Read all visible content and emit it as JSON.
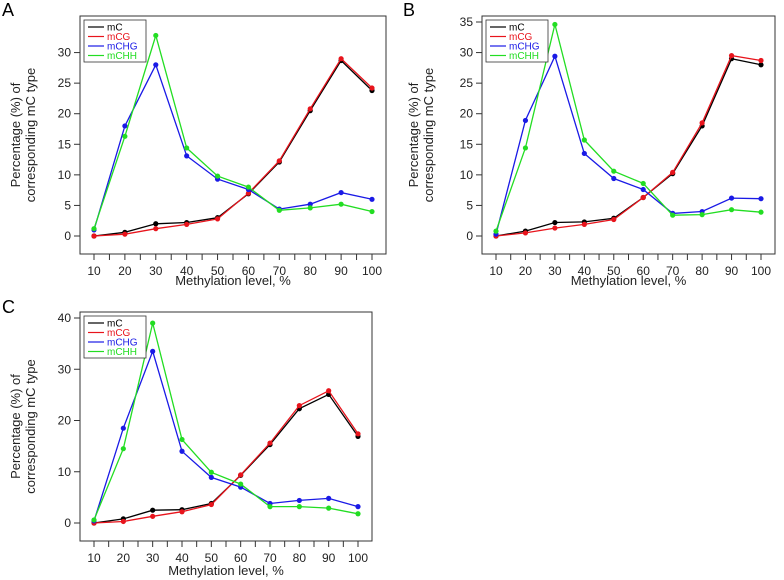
{
  "chart_data": [
    {
      "panel": "A",
      "type": "line",
      "x": [
        10,
        20,
        30,
        40,
        50,
        60,
        70,
        80,
        90,
        100
      ],
      "xlabel": "Methylation level, %",
      "ylabel_lines": [
        "Percentage (%) of",
        "corresponding mC type"
      ],
      "ylim": [
        0,
        35
      ],
      "yticks": [
        0,
        5,
        10,
        15,
        20,
        25,
        30
      ],
      "legend_position": "top-left",
      "series": [
        {
          "name": "mC",
          "color": "#000000",
          "values": [
            0.0,
            0.6,
            2.0,
            2.2,
            3.0,
            6.9,
            12.1,
            20.5,
            28.7,
            23.8
          ]
        },
        {
          "name": "mCG",
          "color": "#e8141c",
          "values": [
            0.0,
            0.3,
            1.2,
            1.9,
            2.8,
            7.0,
            12.3,
            20.8,
            29.0,
            24.2
          ]
        },
        {
          "name": "mCHG",
          "color": "#1a1ae6",
          "values": [
            1.0,
            18.0,
            28.0,
            13.1,
            9.3,
            7.6,
            4.4,
            5.2,
            7.1,
            6.0
          ]
        },
        {
          "name": "mCHH",
          "color": "#22dd22",
          "values": [
            1.2,
            16.3,
            32.8,
            14.4,
            9.8,
            8.0,
            4.2,
            4.6,
            5.2,
            4.0
          ]
        }
      ]
    },
    {
      "panel": "B",
      "type": "line",
      "x": [
        10,
        20,
        30,
        40,
        50,
        60,
        70,
        80,
        90,
        100
      ],
      "xlabel": "Methylation level, %",
      "ylabel_lines": [
        "Percentage (%) of",
        "corresponding mC type"
      ],
      "ylim": [
        0,
        35
      ],
      "yticks": [
        0,
        5,
        10,
        15,
        20,
        25,
        30,
        35
      ],
      "legend_position": "top-left",
      "series": [
        {
          "name": "mC",
          "color": "#000000",
          "values": [
            0.0,
            0.8,
            2.2,
            2.3,
            2.9,
            6.3,
            10.2,
            18.0,
            29.0,
            28.0
          ]
        },
        {
          "name": "mCG",
          "color": "#e8141c",
          "values": [
            0.0,
            0.5,
            1.3,
            1.9,
            2.7,
            6.3,
            10.4,
            18.5,
            29.5,
            28.7
          ]
        },
        {
          "name": "mCHG",
          "color": "#1a1ae6",
          "values": [
            0.3,
            18.9,
            29.4,
            13.5,
            9.4,
            7.6,
            3.7,
            4.0,
            6.2,
            6.1
          ]
        },
        {
          "name": "mCHH",
          "color": "#22dd22",
          "values": [
            0.8,
            14.4,
            34.6,
            15.7,
            10.6,
            8.6,
            3.4,
            3.5,
            4.3,
            3.9
          ]
        }
      ]
    },
    {
      "panel": "C",
      "type": "line",
      "x": [
        10,
        20,
        30,
        40,
        50,
        60,
        70,
        80,
        90,
        100
      ],
      "xlabel": "Methylation level, %",
      "ylabel_lines": [
        "Percentage (%) of",
        "corresponding mC type"
      ],
      "ylim": [
        0,
        40
      ],
      "yticks": [
        0,
        10,
        20,
        30,
        40
      ],
      "legend_position": "top-left",
      "series": [
        {
          "name": "mC",
          "color": "#000000",
          "values": [
            0.0,
            0.8,
            2.5,
            2.6,
            3.8,
            9.3,
            15.3,
            22.3,
            25.1,
            16.9
          ]
        },
        {
          "name": "mCG",
          "color": "#e8141c",
          "values": [
            0.0,
            0.3,
            1.3,
            2.2,
            3.6,
            9.4,
            15.6,
            22.9,
            25.8,
            17.4
          ]
        },
        {
          "name": "mCHG",
          "color": "#1a1ae6",
          "values": [
            0.4,
            18.5,
            33.5,
            14.0,
            8.9,
            7.0,
            3.8,
            4.4,
            4.8,
            3.2
          ]
        },
        {
          "name": "mCHH",
          "color": "#22dd22",
          "values": [
            0.6,
            14.5,
            39.0,
            16.3,
            9.9,
            7.6,
            3.2,
            3.2,
            2.9,
            1.8
          ]
        }
      ]
    }
  ]
}
